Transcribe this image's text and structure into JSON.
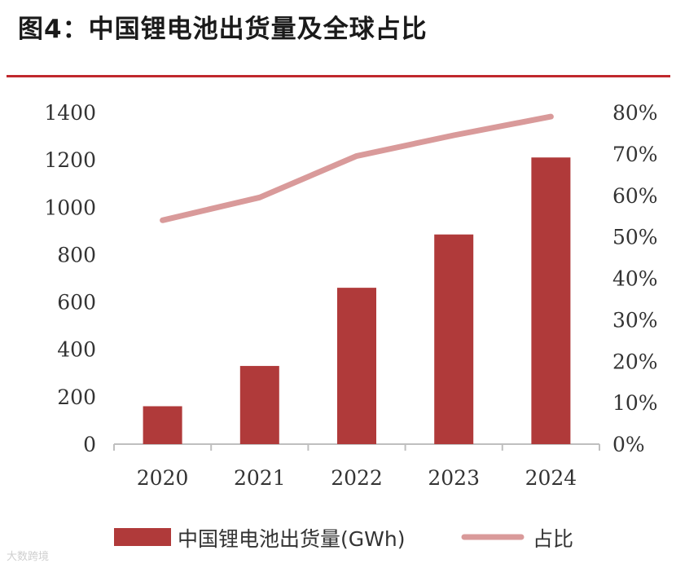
{
  "title": "图4：中国锂电池出货量及全球占比",
  "colors": {
    "bar": "#b03a3a",
    "line": "#d99a9a",
    "rule": "#c0282d",
    "axis": "#bfbfbf"
  },
  "chart_data": {
    "type": "bar",
    "categories": [
      "2020",
      "2021",
      "2022",
      "2023",
      "2024"
    ],
    "series": [
      {
        "name": "中国锂电池出货量(GWh)",
        "kind": "bar",
        "axis": "left",
        "values": [
          160,
          330,
          660,
          885,
          1210
        ]
      },
      {
        "name": "占比",
        "kind": "line",
        "axis": "right",
        "values": [
          0.54,
          0.595,
          0.695,
          0.745,
          0.79
        ]
      }
    ],
    "y_left": {
      "range": [
        0,
        1400
      ],
      "ticks": [
        "0",
        "200",
        "400",
        "600",
        "800",
        "1000",
        "1200",
        "1400"
      ]
    },
    "y_right": {
      "range": [
        0,
        0.8
      ],
      "ticks": [
        "0%",
        "10%",
        "20%",
        "30%",
        "40%",
        "50%",
        "60%",
        "70%",
        "80%"
      ]
    },
    "legend_position": "bottom"
  },
  "watermark": "大数跨境"
}
